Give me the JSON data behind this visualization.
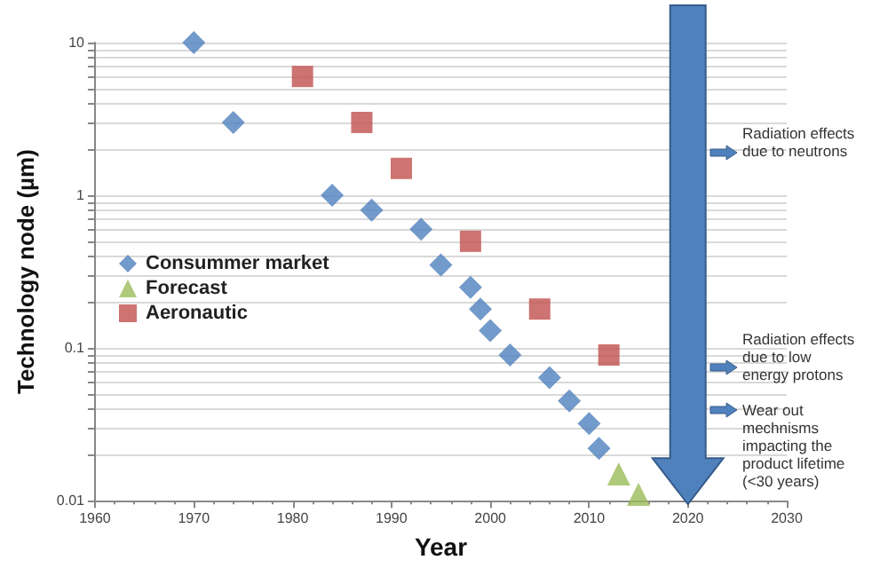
{
  "chart_data": {
    "type": "scatter",
    "xlabel": "Year",
    "ylabel": "Technology node (µm)",
    "xlim": [
      1960,
      2030
    ],
    "xticks": [
      1960,
      1970,
      1980,
      1990,
      2000,
      2010,
      2020,
      2030
    ],
    "ylim": [
      0.01,
      10
    ],
    "yticks": [
      0.01,
      0.1,
      1,
      10
    ],
    "log": "y",
    "grid": "y",
    "legend": "left",
    "series": [
      {
        "name": "Consummer market",
        "color": "#4f81bd",
        "marker": "diamond",
        "x": [
          1970,
          1974,
          1984,
          1988,
          1993,
          1995,
          1998,
          1999,
          2000,
          2002,
          2006,
          2008,
          2010,
          2011
        ],
        "values": [
          10,
          3,
          1,
          0.8,
          0.6,
          0.35,
          0.25,
          0.18,
          0.13,
          0.09,
          0.064,
          0.045,
          0.032,
          0.022
        ]
      },
      {
        "name": "Forecast",
        "color": "#9bbb59",
        "marker": "triangle",
        "x": [
          2013,
          2015
        ],
        "values": [
          0.015,
          0.011
        ]
      },
      {
        "name": "Aeronautic",
        "color": "#c0504d",
        "marker": "square",
        "x": [
          1981,
          1987,
          1991,
          1998,
          2005,
          2012
        ],
        "values": [
          6,
          3,
          1.5,
          0.5,
          0.18,
          0.09
        ]
      }
    ],
    "annotations": [
      "Radiation effects due to neutrons",
      "Radiation effects due to low energy protons",
      "Wear out mechnisms impacting the product lifetime (<30 years)"
    ]
  }
}
